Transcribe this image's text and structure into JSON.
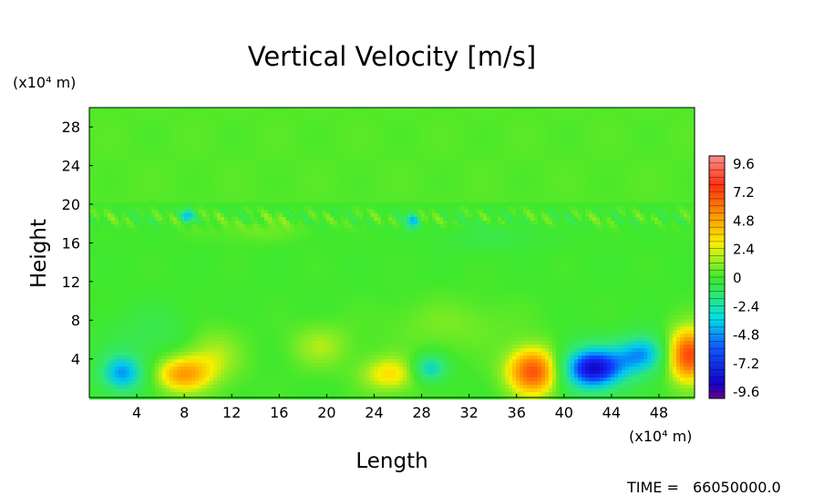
{
  "chart_data": {
    "type": "heatmap",
    "title": "Vertical Velocity [m/s]",
    "xlabel": "Length",
    "ylabel": "Height",
    "x_unit": "(x10⁴ m)",
    "y_unit": "(x10⁴ m)",
    "xlim": [
      0,
      51
    ],
    "ylim": [
      0,
      30
    ],
    "x_ticks": [
      4,
      8,
      12,
      16,
      20,
      24,
      28,
      32,
      36,
      40,
      44,
      48
    ],
    "y_ticks": [
      4,
      8,
      12,
      16,
      20,
      24,
      28
    ],
    "value_range": [
      -10.2,
      10.2
    ],
    "colorbar_ticks": [
      "9.6",
      "7.2",
      "4.8",
      "2.4",
      "0",
      "-2.4",
      "-4.8",
      "-7.2",
      "-9.6"
    ],
    "colorbar_values": [
      9.6,
      7.2,
      4.8,
      2.4,
      0,
      -2.4,
      -4.8,
      -7.2,
      -9.6
    ],
    "features": [
      {
        "x": 2.8,
        "y": 2.5,
        "sx": 1.3,
        "sy": 1.4,
        "value": -5.5
      },
      {
        "x": 7.8,
        "y": 2.4,
        "sx": 1.6,
        "sy": 1.3,
        "value": 4.6
      },
      {
        "x": 10.3,
        "y": 4.3,
        "sx": 1.8,
        "sy": 2.1,
        "value": 2.1
      },
      {
        "x": 19.5,
        "y": 5.3,
        "sx": 1.8,
        "sy": 1.6,
        "value": 1.8
      },
      {
        "x": 25.3,
        "y": 2.4,
        "sx": 1.7,
        "sy": 1.3,
        "value": 3.2
      },
      {
        "x": 28.7,
        "y": 3.0,
        "sx": 1.0,
        "sy": 1.0,
        "value": -4.3
      },
      {
        "x": 37.5,
        "y": 2.7,
        "sx": 1.6,
        "sy": 1.7,
        "value": 7.3
      },
      {
        "x": 42.4,
        "y": 3.0,
        "sx": 2.0,
        "sy": 1.6,
        "value": -8.8
      },
      {
        "x": 46.7,
        "y": 4.5,
        "sx": 1.5,
        "sy": 1.4,
        "value": -5.3
      },
      {
        "x": 50.5,
        "y": 4.4,
        "sx": 1.3,
        "sy": 1.9,
        "value": 7.6
      },
      {
        "x": 30.5,
        "y": 7.5,
        "sx": 4.0,
        "sy": 2.0,
        "value": 1.0
      },
      {
        "x": 5.5,
        "y": 6.5,
        "sx": 3.0,
        "sy": 2.0,
        "value": -1.1
      },
      {
        "x": 8.3,
        "y": 18.8,
        "sx": 0.4,
        "sy": 0.5,
        "value": -5.0
      },
      {
        "x": 27.2,
        "y": 18.2,
        "sx": 0.4,
        "sy": 0.6,
        "value": -4.5
      },
      {
        "x": 14.0,
        "y": 17.3,
        "sx": 3.0,
        "sy": 0.9,
        "value": 0.8
      },
      {
        "x": 34.0,
        "y": 16.5,
        "sx": 3.0,
        "sy": 1.0,
        "value": -0.9
      }
    ]
  },
  "time_label": "TIME =",
  "time_value": "66050000.0"
}
